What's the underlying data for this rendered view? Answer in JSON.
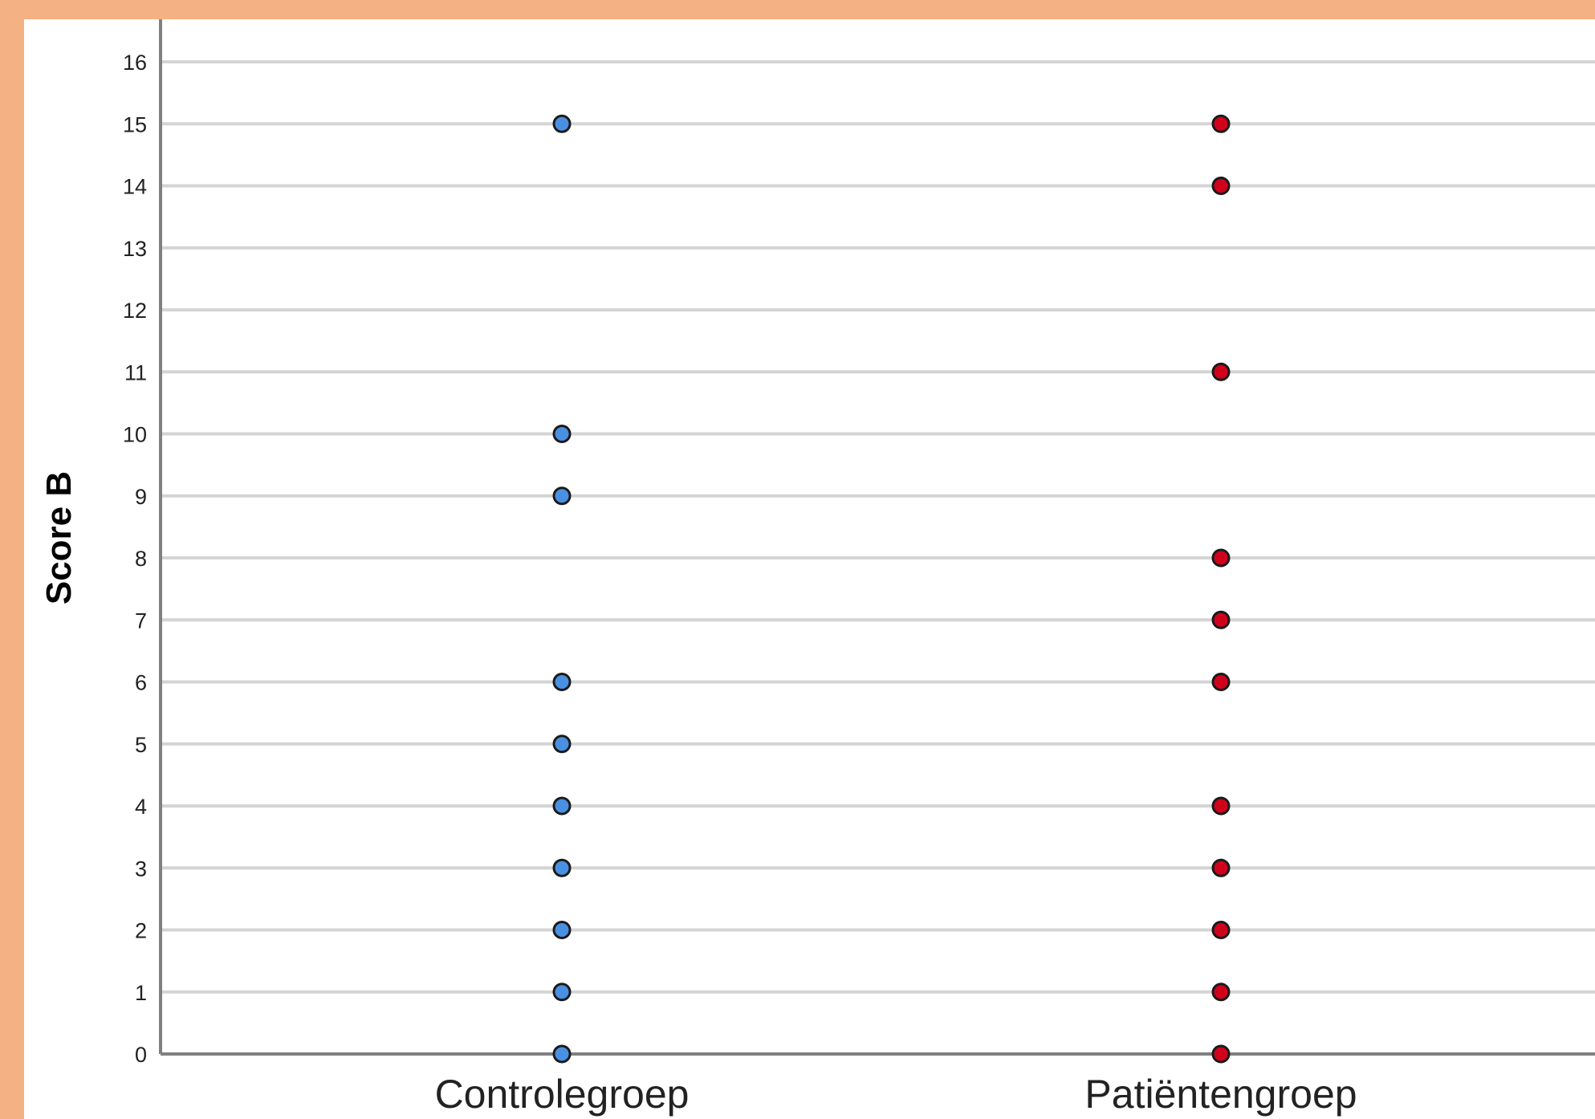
{
  "chart_data": {
    "type": "scatter",
    "title": "",
    "xlabel": "",
    "ylabel": "Score B",
    "categories": [
      "Controlegroep",
      "Patiëntengroep"
    ],
    "ylim": [
      0,
      16
    ],
    "yticks": [
      0,
      1,
      2,
      3,
      4,
      5,
      6,
      7,
      8,
      9,
      10,
      11,
      12,
      13,
      14,
      15,
      16
    ],
    "grid": true,
    "legend": "none",
    "series": [
      {
        "category": "Controlegroep",
        "color": "#4a90e2",
        "values": [
          0,
          1,
          2,
          3,
          4,
          5,
          6,
          9,
          10,
          15
        ]
      },
      {
        "category": "Patiëntengroep",
        "color": "#d0021b",
        "values": [
          0,
          1,
          2,
          3,
          4,
          6,
          7,
          8,
          11,
          14,
          15
        ]
      }
    ]
  },
  "colors": {
    "background": "#f4b183",
    "plot_background": "#ffffff",
    "gridline": "#d4d4d4",
    "axis": "#808080"
  }
}
